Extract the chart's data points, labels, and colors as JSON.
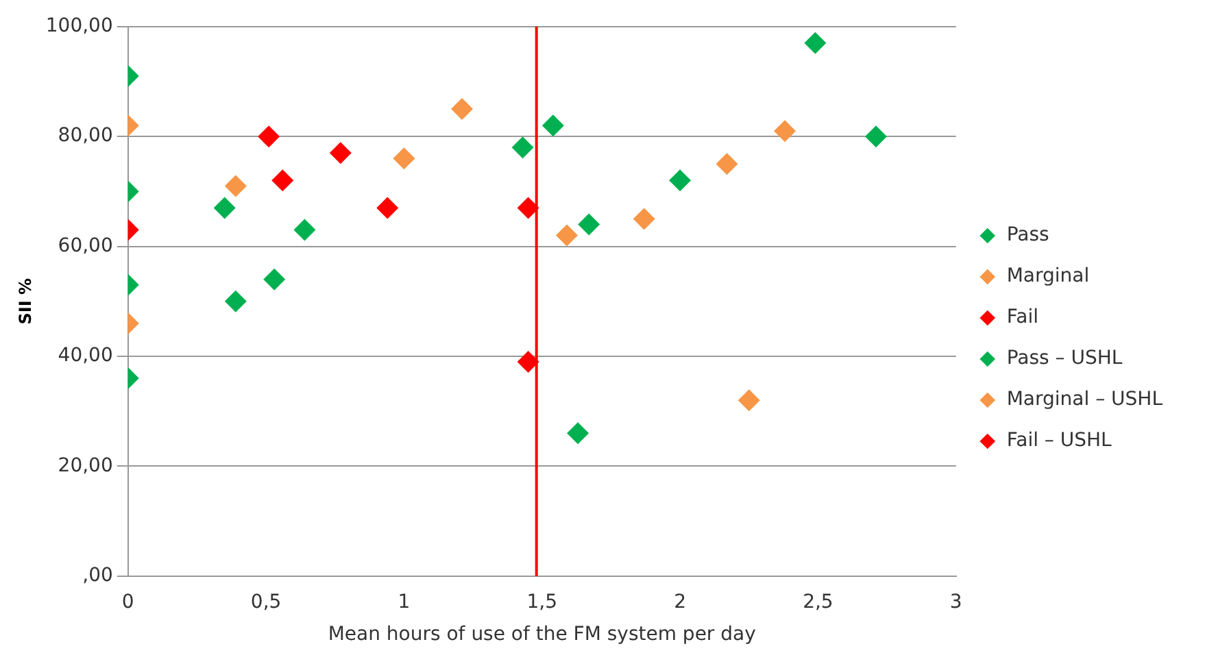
{
  "chart_data": {
    "type": "scatter",
    "xlabel": "Mean hours of use of the FM system per day",
    "ylabel": "SII %",
    "xlim": [
      0,
      3
    ],
    "xticks": [
      0,
      {
        "value": 0.5,
        "label": "0,5"
      },
      1,
      {
        "value": 1.5,
        "label": "1,5"
      },
      2,
      {
        "value": 2.5,
        "label": "2,5"
      },
      3
    ],
    "ylim": [
      0,
      100
    ],
    "yticks": [
      {
        "value": 0,
        "label": ",00"
      },
      {
        "value": 20,
        "label": "20,00"
      },
      {
        "value": 40,
        "label": "40,00"
      },
      {
        "value": 60,
        "label": "60,00"
      },
      {
        "value": 80,
        "label": "80,00"
      },
      {
        "value": 100,
        "label": "100,00"
      }
    ],
    "grid": "y",
    "legend": "right",
    "marker": "diamond",
    "ref_lines": [
      {
        "axis": "x",
        "value": 1.48,
        "color": "#ff0000"
      }
    ],
    "series": [
      {
        "name": "Pass",
        "color": "#00b050",
        "x": [
          0,
          0,
          0.35,
          0.39,
          0.53,
          0.64,
          1.43,
          1.63,
          1.67,
          2.0,
          2.49,
          2.71
        ],
        "values": [
          70,
          36,
          67,
          50,
          54,
          63,
          78,
          26,
          64,
          72,
          97,
          80
        ]
      },
      {
        "name": "Marginal",
        "color": "#f79646",
        "x": [
          0,
          0,
          0.39,
          1.0,
          1.21,
          1.59,
          1.87,
          2.17,
          2.38,
          2.25
        ],
        "values": [
          82,
          46,
          71,
          76,
          85,
          62,
          65,
          75,
          81,
          32
        ]
      },
      {
        "name": "Fail",
        "color": "#ff0000",
        "x": [
          0.51,
          0.56,
          0.77,
          0.94,
          1.45,
          1.45
        ],
        "values": [
          80,
          72,
          77,
          67,
          67,
          39
        ]
      },
      {
        "name": "Pass – USHL",
        "color": "#00b050",
        "x": [
          0,
          0,
          1.54
        ],
        "values": [
          91,
          53,
          82
        ]
      },
      {
        "name": "Marginal – USHL",
        "color": "#f79646"
      },
      {
        "name": "Fail – USHL",
        "color": "#ff0000",
        "x": [
          0
        ],
        "values": [
          63
        ]
      }
    ]
  }
}
